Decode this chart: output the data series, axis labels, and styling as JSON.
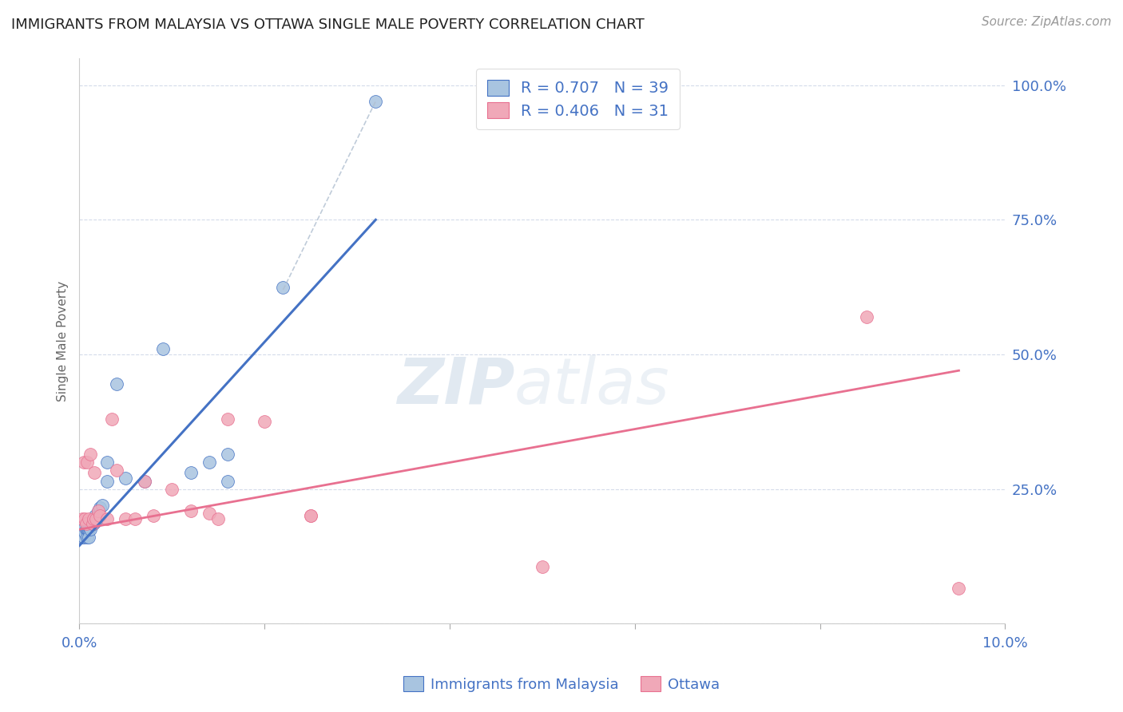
{
  "title": "IMMIGRANTS FROM MALAYSIA VS OTTAWA SINGLE MALE POVERTY CORRELATION CHART",
  "source": "Source: ZipAtlas.com",
  "ylabel": "Single Male Poverty",
  "right_yticks": [
    "100.0%",
    "75.0%",
    "50.0%",
    "25.0%"
  ],
  "right_ytick_vals": [
    1.0,
    0.75,
    0.5,
    0.25
  ],
  "legend_blue_label": "R = 0.707   N = 39",
  "legend_pink_label": "R = 0.406   N = 31",
  "legend_label_blue": "Immigrants from Malaysia",
  "legend_label_pink": "Ottawa",
  "blue_color": "#a8c4e0",
  "pink_color": "#f0a8b8",
  "blue_line_color": "#4472c4",
  "pink_line_color": "#e87090",
  "text_color": "#4472c4",
  "blue_scatter_x": [
    0.0002,
    0.0003,
    0.0004,
    0.0005,
    0.0005,
    0.0006,
    0.0006,
    0.0007,
    0.0008,
    0.0008,
    0.0009,
    0.001,
    0.001,
    0.001,
    0.0011,
    0.0012,
    0.0012,
    0.0013,
    0.0014,
    0.0015,
    0.0016,
    0.0017,
    0.0018,
    0.002,
    0.002,
    0.0022,
    0.0025,
    0.003,
    0.003,
    0.004,
    0.005,
    0.007,
    0.009,
    0.012,
    0.014,
    0.016,
    0.016,
    0.022,
    0.032
  ],
  "blue_scatter_y": [
    0.17,
    0.16,
    0.17,
    0.16,
    0.175,
    0.18,
    0.17,
    0.175,
    0.16,
    0.175,
    0.175,
    0.175,
    0.18,
    0.16,
    0.18,
    0.185,
    0.175,
    0.19,
    0.185,
    0.185,
    0.19,
    0.2,
    0.19,
    0.21,
    0.2,
    0.215,
    0.22,
    0.265,
    0.3,
    0.445,
    0.27,
    0.265,
    0.51,
    0.28,
    0.3,
    0.265,
    0.315,
    0.625,
    0.97
  ],
  "pink_scatter_x": [
    0.0003,
    0.0005,
    0.0006,
    0.0007,
    0.0008,
    0.001,
    0.0012,
    0.0014,
    0.0015,
    0.0016,
    0.0018,
    0.002,
    0.0022,
    0.003,
    0.0035,
    0.004,
    0.005,
    0.006,
    0.007,
    0.008,
    0.01,
    0.012,
    0.014,
    0.015,
    0.016,
    0.02,
    0.025,
    0.025,
    0.05,
    0.085,
    0.095
  ],
  "pink_scatter_y": [
    0.195,
    0.3,
    0.195,
    0.185,
    0.3,
    0.195,
    0.315,
    0.185,
    0.195,
    0.28,
    0.195,
    0.21,
    0.2,
    0.195,
    0.38,
    0.285,
    0.195,
    0.195,
    0.265,
    0.2,
    0.25,
    0.21,
    0.205,
    0.195,
    0.38,
    0.375,
    0.2,
    0.2,
    0.105,
    0.57,
    0.065
  ],
  "blue_line_x": [
    0.0,
    0.032
  ],
  "blue_line_y": [
    0.145,
    0.75
  ],
  "pink_line_x": [
    0.0,
    0.095
  ],
  "pink_line_y": [
    0.175,
    0.47
  ],
  "dashed_line_x": [
    0.022,
    0.032
  ],
  "dashed_line_y": [
    0.62,
    0.97
  ],
  "xlim": [
    0.0,
    0.1
  ],
  "ylim": [
    0.0,
    1.05
  ],
  "background_color": "#ffffff",
  "grid_color": "#d0d8e8"
}
